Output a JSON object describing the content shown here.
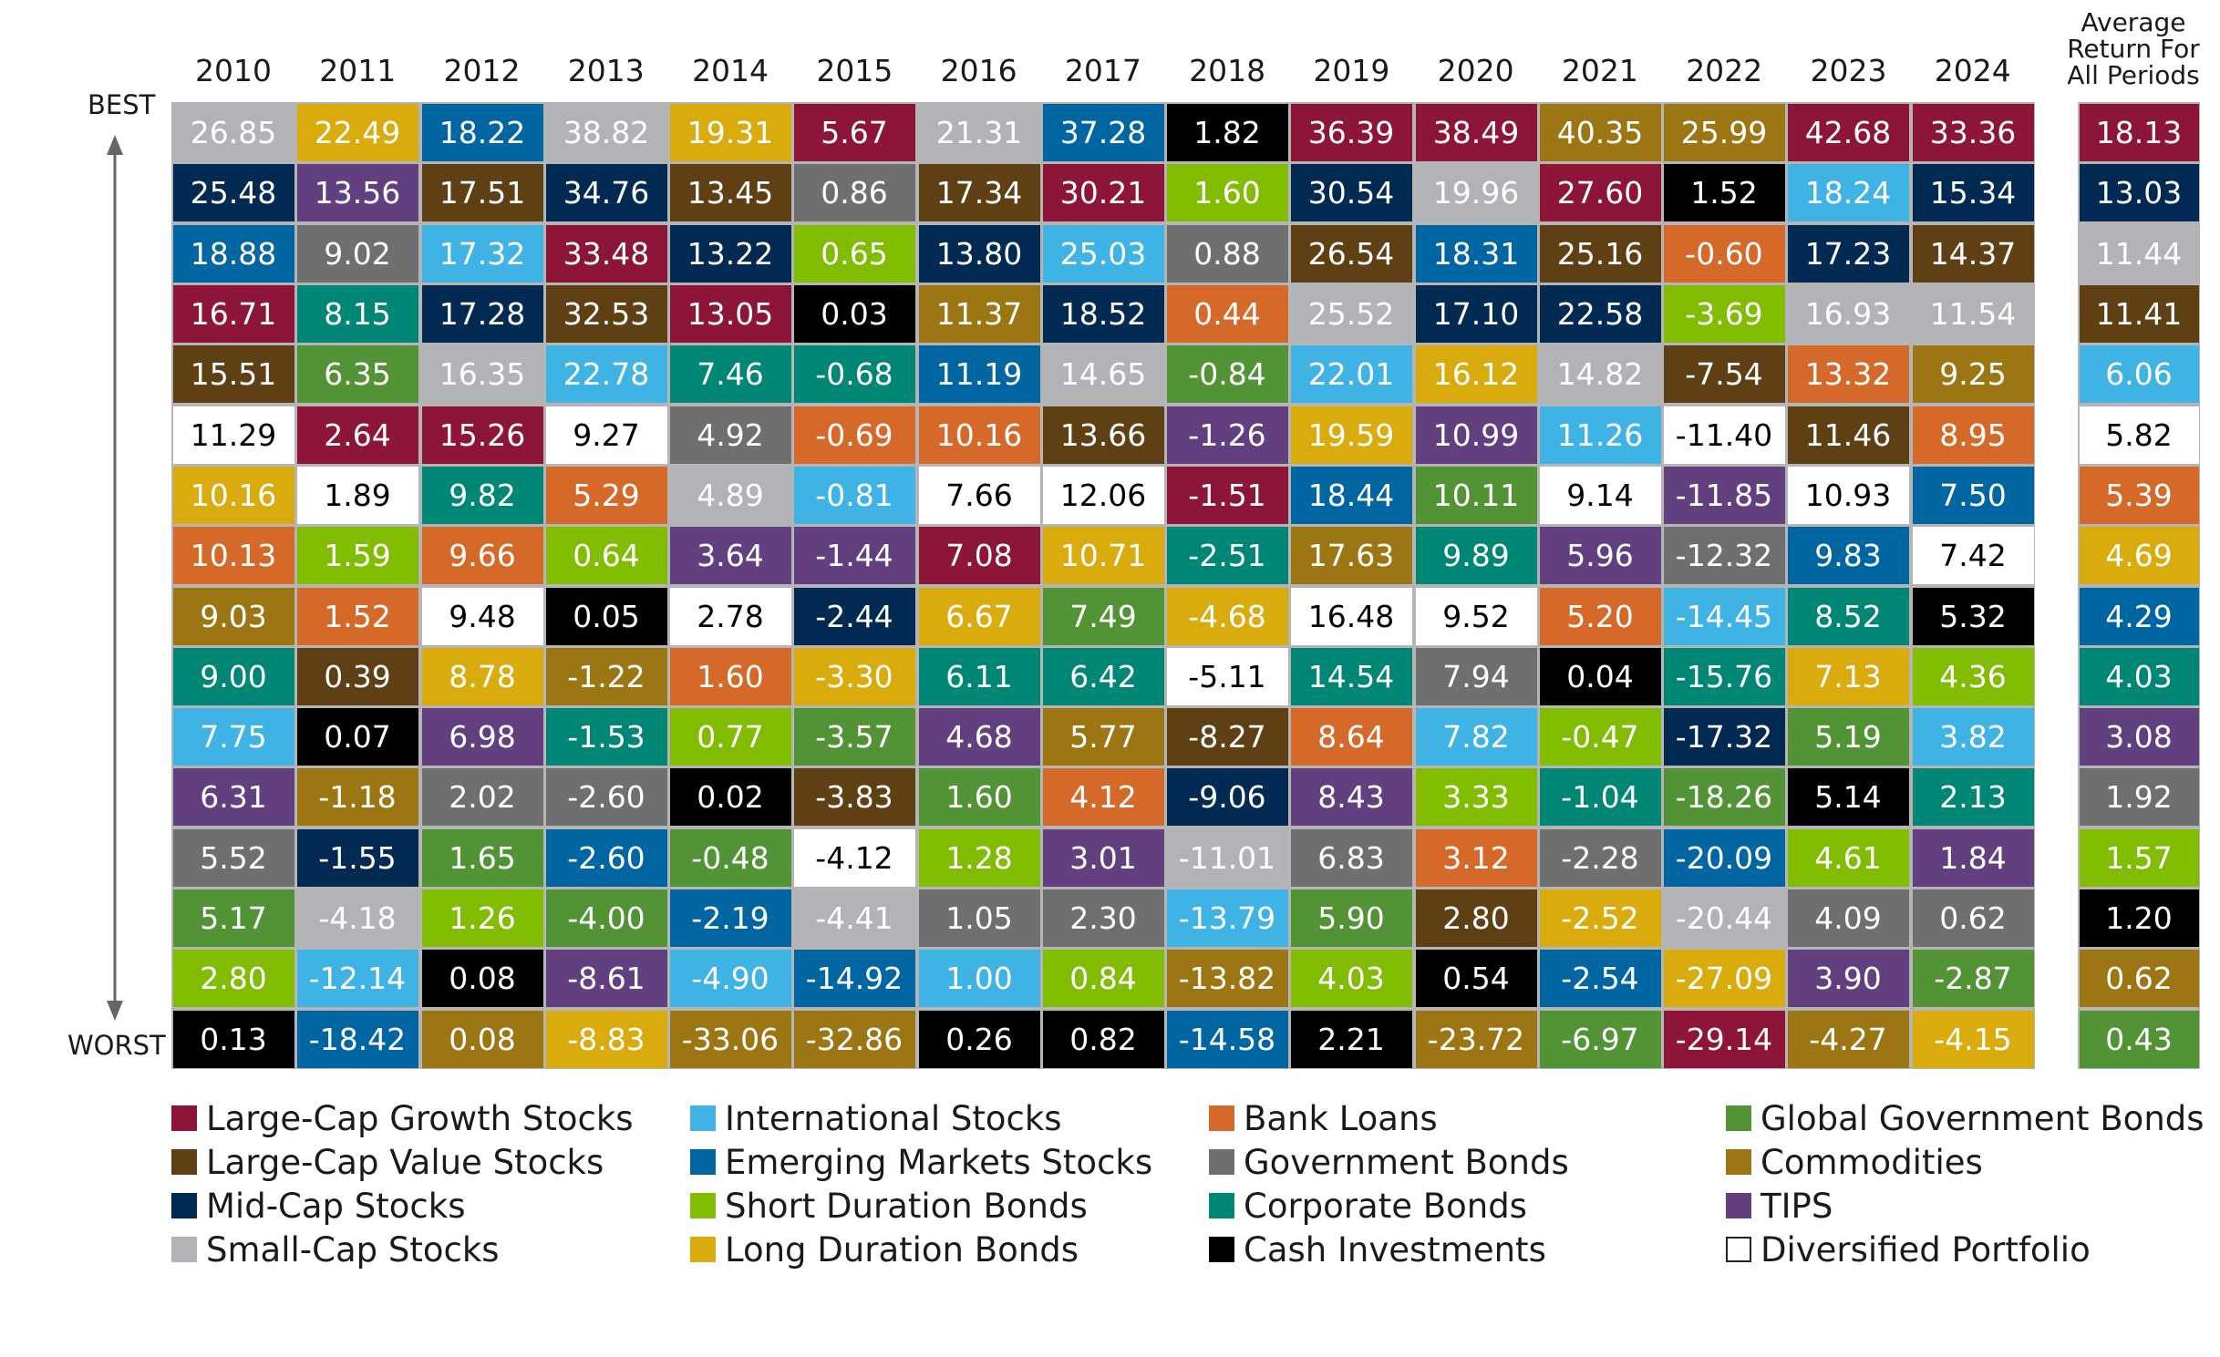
{
  "chart_data": {
    "type": "table",
    "title": "",
    "best_label": "BEST",
    "worst_label": "WORST",
    "average_header": [
      "Average",
      "Return For",
      "All Periods"
    ],
    "years": [
      "2010",
      "2011",
      "2012",
      "2013",
      "2014",
      "2015",
      "2016",
      "2017",
      "2018",
      "2019",
      "2020",
      "2021",
      "2022",
      "2023",
      "2024"
    ],
    "categories": {
      "LCG": {
        "label": "Large-Cap Growth Stocks",
        "color": "#8C1538"
      },
      "LCV": {
        "label": "Large-Cap Value Stocks",
        "color": "#5F3F14"
      },
      "MC": {
        "label": "Mid-Cap Stocks",
        "color": "#002A52"
      },
      "SC": {
        "label": "Small-Cap Stocks",
        "color": "#B1B3B6"
      },
      "IS": {
        "label": "International Stocks",
        "color": "#3EB3E4"
      },
      "EM": {
        "label": "Emerging Markets Stocks",
        "color": "#0066A1"
      },
      "SD": {
        "label": "Short Duration Bonds",
        "color": "#82BC00"
      },
      "LDB": {
        "label": "Long Duration Bonds",
        "color": "#D9AB0C"
      },
      "BL": {
        "label": "Bank Loans",
        "color": "#D5692A"
      },
      "GB": {
        "label": "Government Bonds",
        "color": "#6E6F71"
      },
      "CB": {
        "label": "Corporate Bonds",
        "color": "#008675"
      },
      "CA": {
        "label": "Cash Investments",
        "color": "#000000"
      },
      "GG": {
        "label": "Global Government Bonds",
        "color": "#529336"
      },
      "CO": {
        "label": "Commodities",
        "color": "#9B7613"
      },
      "TI": {
        "label": "TIPS",
        "color": "#624080"
      },
      "DP": {
        "label": "Diversified Portfolio",
        "color": "#FFFFFF"
      }
    },
    "legend_order": [
      "LCG",
      "LCV",
      "MC",
      "SC",
      "IS",
      "EM",
      "SD",
      "LDB",
      "BL",
      "GB",
      "CB",
      "CA",
      "GG",
      "CO",
      "TI",
      "DP"
    ],
    "columns": [
      [
        [
          "26.85",
          "SC"
        ],
        [
          "25.48",
          "MC"
        ],
        [
          "18.88",
          "EM"
        ],
        [
          "16.71",
          "LCG"
        ],
        [
          "15.51",
          "LCV"
        ],
        [
          "11.29",
          "DP"
        ],
        [
          "10.16",
          "LDB"
        ],
        [
          "10.13",
          "BL"
        ],
        [
          "9.03",
          "CO"
        ],
        [
          "9.00",
          "CB"
        ],
        [
          "7.75",
          "IS"
        ],
        [
          "6.31",
          "TI"
        ],
        [
          "5.52",
          "GB"
        ],
        [
          "5.17",
          "GG"
        ],
        [
          "2.80",
          "SD"
        ],
        [
          "0.13",
          "CA"
        ]
      ],
      [
        [
          "22.49",
          "LDB"
        ],
        [
          "13.56",
          "TI"
        ],
        [
          "9.02",
          "GB"
        ],
        [
          "8.15",
          "CB"
        ],
        [
          "6.35",
          "GG"
        ],
        [
          "2.64",
          "LCG"
        ],
        [
          "1.89",
          "DP"
        ],
        [
          "1.59",
          "SD"
        ],
        [
          "1.52",
          "BL"
        ],
        [
          "0.39",
          "LCV"
        ],
        [
          "0.07",
          "CA"
        ],
        [
          "-1.18",
          "CO"
        ],
        [
          "-1.55",
          "MC"
        ],
        [
          "-4.18",
          "SC"
        ],
        [
          "-12.14",
          "IS"
        ],
        [
          "-18.42",
          "EM"
        ]
      ],
      [
        [
          "18.22",
          "EM"
        ],
        [
          "17.51",
          "LCV"
        ],
        [
          "17.32",
          "IS"
        ],
        [
          "17.28",
          "MC"
        ],
        [
          "16.35",
          "SC"
        ],
        [
          "15.26",
          "LCG"
        ],
        [
          "9.82",
          "CB"
        ],
        [
          "9.66",
          "BL"
        ],
        [
          "9.48",
          "DP"
        ],
        [
          "8.78",
          "LDB"
        ],
        [
          "6.98",
          "TI"
        ],
        [
          "2.02",
          "GB"
        ],
        [
          "1.65",
          "GG"
        ],
        [
          "1.26",
          "SD"
        ],
        [
          "0.08",
          "CA"
        ],
        [
          "0.08",
          "CO"
        ]
      ],
      [
        [
          "38.82",
          "SC"
        ],
        [
          "34.76",
          "MC"
        ],
        [
          "33.48",
          "LCG"
        ],
        [
          "32.53",
          "LCV"
        ],
        [
          "22.78",
          "IS"
        ],
        [
          "9.27",
          "DP"
        ],
        [
          "5.29",
          "BL"
        ],
        [
          "0.64",
          "SD"
        ],
        [
          "0.05",
          "CA"
        ],
        [
          "-1.22",
          "CO"
        ],
        [
          "-1.53",
          "CB"
        ],
        [
          "-2.60",
          "GB"
        ],
        [
          "-2.60",
          "EM"
        ],
        [
          "-4.00",
          "GG"
        ],
        [
          "-8.61",
          "TI"
        ],
        [
          "-8.83",
          "LDB"
        ]
      ],
      [
        [
          "19.31",
          "LDB"
        ],
        [
          "13.45",
          "LCV"
        ],
        [
          "13.22",
          "MC"
        ],
        [
          "13.05",
          "LCG"
        ],
        [
          "7.46",
          "CB"
        ],
        [
          "4.92",
          "GB"
        ],
        [
          "4.89",
          "SC"
        ],
        [
          "3.64",
          "TI"
        ],
        [
          "2.78",
          "DP"
        ],
        [
          "1.60",
          "BL"
        ],
        [
          "0.77",
          "SD"
        ],
        [
          "0.02",
          "CA"
        ],
        [
          "-0.48",
          "GG"
        ],
        [
          "-2.19",
          "EM"
        ],
        [
          "-4.90",
          "IS"
        ],
        [
          "-33.06",
          "CO"
        ]
      ],
      [
        [
          "5.67",
          "LCG"
        ],
        [
          "0.86",
          "GB"
        ],
        [
          "0.65",
          "SD"
        ],
        [
          "0.03",
          "CA"
        ],
        [
          "-0.68",
          "CB"
        ],
        [
          "-0.69",
          "BL"
        ],
        [
          "-0.81",
          "IS"
        ],
        [
          "-1.44",
          "TI"
        ],
        [
          "-2.44",
          "MC"
        ],
        [
          "-3.30",
          "LDB"
        ],
        [
          "-3.57",
          "GG"
        ],
        [
          "-3.83",
          "LCV"
        ],
        [
          "-4.12",
          "DP"
        ],
        [
          "-4.41",
          "SC"
        ],
        [
          "-14.92",
          "EM"
        ],
        [
          "-32.86",
          "CO"
        ]
      ],
      [
        [
          "21.31",
          "SC"
        ],
        [
          "17.34",
          "LCV"
        ],
        [
          "13.80",
          "MC"
        ],
        [
          "11.37",
          "CO"
        ],
        [
          "11.19",
          "EM"
        ],
        [
          "10.16",
          "BL"
        ],
        [
          "7.66",
          "DP"
        ],
        [
          "7.08",
          "LCG"
        ],
        [
          "6.67",
          "LDB"
        ],
        [
          "6.11",
          "CB"
        ],
        [
          "4.68",
          "TI"
        ],
        [
          "1.60",
          "GG"
        ],
        [
          "1.28",
          "SD"
        ],
        [
          "1.05",
          "GB"
        ],
        [
          "1.00",
          "IS"
        ],
        [
          "0.26",
          "CA"
        ]
      ],
      [
        [
          "37.28",
          "EM"
        ],
        [
          "30.21",
          "LCG"
        ],
        [
          "25.03",
          "IS"
        ],
        [
          "18.52",
          "MC"
        ],
        [
          "14.65",
          "SC"
        ],
        [
          "13.66",
          "LCV"
        ],
        [
          "12.06",
          "DP"
        ],
        [
          "10.71",
          "LDB"
        ],
        [
          "7.49",
          "GG"
        ],
        [
          "6.42",
          "CB"
        ],
        [
          "5.77",
          "CO"
        ],
        [
          "4.12",
          "BL"
        ],
        [
          "3.01",
          "TI"
        ],
        [
          "2.30",
          "GB"
        ],
        [
          "0.84",
          "SD"
        ],
        [
          "0.82",
          "CA"
        ]
      ],
      [
        [
          "1.82",
          "CA"
        ],
        [
          "1.60",
          "SD"
        ],
        [
          "0.88",
          "GB"
        ],
        [
          "0.44",
          "BL"
        ],
        [
          "-0.84",
          "GG"
        ],
        [
          "-1.26",
          "TI"
        ],
        [
          "-1.51",
          "LCG"
        ],
        [
          "-2.51",
          "CB"
        ],
        [
          "-4.68",
          "LDB"
        ],
        [
          "-5.11",
          "DP"
        ],
        [
          "-8.27",
          "LCV"
        ],
        [
          "-9.06",
          "MC"
        ],
        [
          "-11.01",
          "SC"
        ],
        [
          "-13.79",
          "IS"
        ],
        [
          "-13.82",
          "CO"
        ],
        [
          "-14.58",
          "EM"
        ]
      ],
      [
        [
          "36.39",
          "LCG"
        ],
        [
          "30.54",
          "MC"
        ],
        [
          "26.54",
          "LCV"
        ],
        [
          "25.52",
          "SC"
        ],
        [
          "22.01",
          "IS"
        ],
        [
          "19.59",
          "LDB"
        ],
        [
          "18.44",
          "EM"
        ],
        [
          "17.63",
          "CO"
        ],
        [
          "16.48",
          "DP"
        ],
        [
          "14.54",
          "CB"
        ],
        [
          "8.64",
          "BL"
        ],
        [
          "8.43",
          "TI"
        ],
        [
          "6.83",
          "GB"
        ],
        [
          "5.90",
          "GG"
        ],
        [
          "4.03",
          "SD"
        ],
        [
          "2.21",
          "CA"
        ]
      ],
      [
        [
          "38.49",
          "LCG"
        ],
        [
          "19.96",
          "SC"
        ],
        [
          "18.31",
          "EM"
        ],
        [
          "17.10",
          "MC"
        ],
        [
          "16.12",
          "LDB"
        ],
        [
          "10.99",
          "TI"
        ],
        [
          "10.11",
          "GG"
        ],
        [
          "9.89",
          "CB"
        ],
        [
          "9.52",
          "DP"
        ],
        [
          "7.94",
          "GB"
        ],
        [
          "7.82",
          "IS"
        ],
        [
          "3.33",
          "SD"
        ],
        [
          "3.12",
          "BL"
        ],
        [
          "2.80",
          "LCV"
        ],
        [
          "0.54",
          "CA"
        ],
        [
          "-23.72",
          "CO"
        ]
      ],
      [
        [
          "40.35",
          "CO"
        ],
        [
          "27.60",
          "LCG"
        ],
        [
          "25.16",
          "LCV"
        ],
        [
          "22.58",
          "MC"
        ],
        [
          "14.82",
          "SC"
        ],
        [
          "11.26",
          "IS"
        ],
        [
          "9.14",
          "DP"
        ],
        [
          "5.96",
          "TI"
        ],
        [
          "5.20",
          "BL"
        ],
        [
          "0.04",
          "CA"
        ],
        [
          "-0.47",
          "SD"
        ],
        [
          "-1.04",
          "CB"
        ],
        [
          "-2.28",
          "GB"
        ],
        [
          "-2.52",
          "LDB"
        ],
        [
          "-2.54",
          "EM"
        ],
        [
          "-6.97",
          "GG"
        ]
      ],
      [
        [
          "25.99",
          "CO"
        ],
        [
          "1.52",
          "CA"
        ],
        [
          "-0.60",
          "BL"
        ],
        [
          "-3.69",
          "SD"
        ],
        [
          "-7.54",
          "LCV"
        ],
        [
          "-11.40",
          "DP"
        ],
        [
          "-11.85",
          "TI"
        ],
        [
          "-12.32",
          "GB"
        ],
        [
          "-14.45",
          "IS"
        ],
        [
          "-15.76",
          "CB"
        ],
        [
          "-17.32",
          "MC"
        ],
        [
          "-18.26",
          "GG"
        ],
        [
          "-20.09",
          "EM"
        ],
        [
          "-20.44",
          "SC"
        ],
        [
          "-27.09",
          "LDB"
        ],
        [
          "-29.14",
          "LCG"
        ]
      ],
      [
        [
          "42.68",
          "LCG"
        ],
        [
          "18.24",
          "IS"
        ],
        [
          "17.23",
          "MC"
        ],
        [
          "16.93",
          "SC"
        ],
        [
          "13.32",
          "BL"
        ],
        [
          "11.46",
          "LCV"
        ],
        [
          "10.93",
          "DP"
        ],
        [
          "9.83",
          "EM"
        ],
        [
          "8.52",
          "CB"
        ],
        [
          "7.13",
          "LDB"
        ],
        [
          "5.19",
          "GG"
        ],
        [
          "5.14",
          "CA"
        ],
        [
          "4.61",
          "SD"
        ],
        [
          "4.09",
          "GB"
        ],
        [
          "3.90",
          "TI"
        ],
        [
          "-4.27",
          "CO"
        ]
      ],
      [
        [
          "33.36",
          "LCG"
        ],
        [
          "15.34",
          "MC"
        ],
        [
          "14.37",
          "LCV"
        ],
        [
          "11.54",
          "SC"
        ],
        [
          "9.25",
          "CO"
        ],
        [
          "8.95",
          "BL"
        ],
        [
          "7.50",
          "EM"
        ],
        [
          "7.42",
          "DP"
        ],
        [
          "5.32",
          "CA"
        ],
        [
          "4.36",
          "SD"
        ],
        [
          "3.82",
          "IS"
        ],
        [
          "2.13",
          "CB"
        ],
        [
          "1.84",
          "TI"
        ],
        [
          "0.62",
          "GB"
        ],
        [
          "-2.87",
          "GG"
        ],
        [
          "-4.15",
          "LDB"
        ]
      ]
    ],
    "average": [
      [
        "18.13",
        "LCG"
      ],
      [
        "13.03",
        "MC"
      ],
      [
        "11.44",
        "SC"
      ],
      [
        "11.41",
        "LCV"
      ],
      [
        "6.06",
        "IS"
      ],
      [
        "5.82",
        "DP"
      ],
      [
        "5.39",
        "BL"
      ],
      [
        "4.69",
        "LDB"
      ],
      [
        "4.29",
        "EM"
      ],
      [
        "4.03",
        "CB"
      ],
      [
        "3.08",
        "TI"
      ],
      [
        "1.92",
        "GB"
      ],
      [
        "1.57",
        "SD"
      ],
      [
        "1.20",
        "CA"
      ],
      [
        "0.62",
        "CO"
      ],
      [
        "0.43",
        "GG"
      ]
    ]
  }
}
